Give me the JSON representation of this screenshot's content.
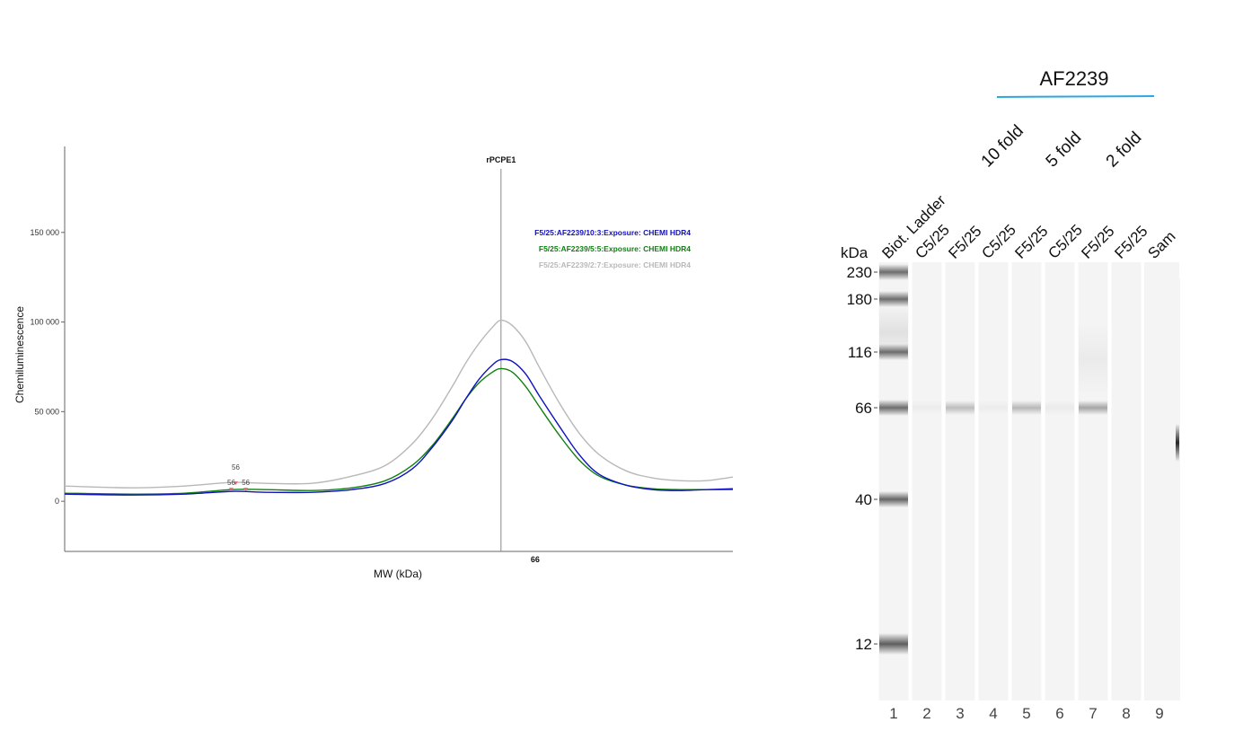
{
  "chart_data": [
    {
      "type": "line",
      "xlabel": "MW (kDa)",
      "ylabel": "Chemiluminescence",
      "ylim": [
        -28000,
        198000
      ],
      "yticks": [
        0,
        50000,
        100000,
        150000
      ],
      "ytick_labels": [
        "0",
        "50 000",
        "100 000",
        "150 000"
      ],
      "xlim": [
        0,
        100
      ],
      "marker": {
        "label": "rPCPE1",
        "x": 65.3,
        "tick_label": "66"
      },
      "legend_placement": "top-right",
      "grid": false,
      "peak_annotations": [
        {
          "label": "56",
          "x": 25.6,
          "y": 9500
        },
        {
          "label": "56",
          "x": 25.2,
          "y": 6000
        },
        {
          "label": "56",
          "x": 26.3,
          "y": 6000
        }
      ],
      "series": [
        {
          "name": "F5/25:AF2239/10:3:Exposure: CHEMI HDR4",
          "color": "#1010c0",
          "x": [
            0,
            10,
            18,
            25,
            30,
            37,
            43,
            48,
            52,
            55,
            58,
            60,
            62,
            64,
            65.3,
            67,
            69,
            71,
            74,
            77,
            80,
            84,
            88,
            92,
            96,
            100
          ],
          "y": [
            4000,
            3500,
            4000,
            5500,
            5000,
            5000,
            6500,
            10000,
            18000,
            30000,
            45000,
            57000,
            68000,
            76000,
            79000,
            78000,
            71000,
            59000,
            42000,
            26000,
            15000,
            9000,
            6500,
            6000,
            6500,
            7000
          ]
        },
        {
          "name": "F5/25:AF2239/5:5:Exposure: CHEMI HDR4",
          "color": "#108010",
          "x": [
            0,
            10,
            18,
            25,
            30,
            37,
            43,
            48,
            52,
            55,
            58,
            60,
            62,
            64,
            65.3,
            67,
            69,
            71,
            74,
            77,
            80,
            84,
            88,
            92,
            96,
            100
          ],
          "y": [
            4500,
            4000,
            4500,
            6500,
            6500,
            6000,
            7500,
            11500,
            20000,
            31000,
            46000,
            57000,
            66000,
            72000,
            74000,
            72000,
            64000,
            53000,
            37000,
            23000,
            14000,
            9000,
            7000,
            6500,
            6500,
            6500
          ]
        },
        {
          "name": "F5/25:AF2239/2:7:Exposure: CHEMI HDR4",
          "color": "#b8b8b8",
          "x": [
            0,
            10,
            18,
            25,
            30,
            37,
            43,
            48,
            52,
            55,
            58,
            60,
            62,
            64,
            65.3,
            67,
            69,
            71,
            74,
            77,
            80,
            84,
            88,
            92,
            96,
            100
          ],
          "y": [
            8500,
            7500,
            8500,
            10500,
            10000,
            10000,
            14000,
            20000,
            32000,
            46000,
            64000,
            77000,
            88000,
            97000,
            101000,
            98000,
            89000,
            75000,
            55000,
            38000,
            26000,
            17000,
            13000,
            11500,
            11500,
            13500
          ]
        }
      ]
    },
    {
      "type": "gel",
      "title": "AF2239",
      "group_labels": [
        "10 fold",
        "5 fold",
        "2 fold"
      ],
      "lane_labels": [
        "Biot. Ladder",
        "C5/25",
        "F5/25",
        "C5/25",
        "F5/25",
        "C5/25",
        "F5/25",
        "F5/25",
        "Sam"
      ],
      "lane_numbers": [
        "1",
        "2",
        "3",
        "4",
        "5",
        "6",
        "7",
        "8",
        "9"
      ],
      "unit_label": "kDa",
      "mw_markers": [
        230,
        180,
        116,
        66,
        40,
        12
      ],
      "mw_marker_labels": [
        "230",
        "180",
        "116",
        "66",
        "40",
        "12"
      ],
      "band_color": "#555555",
      "group_line_color": "#2aa8e0",
      "bands": [
        {
          "lane": 1,
          "mw": 230,
          "intensity": 0.85
        },
        {
          "lane": 1,
          "mw": 180,
          "intensity": 0.85
        },
        {
          "lane": 1,
          "mw": 116,
          "intensity": 0.85
        },
        {
          "lane": 1,
          "mw": 66,
          "intensity": 0.85
        },
        {
          "lane": 1,
          "mw": 40,
          "intensity": 0.9
        },
        {
          "lane": 1,
          "mw": 12,
          "intensity": 0.95
        },
        {
          "lane": 3,
          "mw": 66,
          "intensity": 0.35
        },
        {
          "lane": 5,
          "mw": 66,
          "intensity": 0.38
        },
        {
          "lane": 7,
          "mw": 66,
          "intensity": 0.5
        },
        {
          "lane": 2,
          "mw": 66,
          "intensity": 0.05
        },
        {
          "lane": 4,
          "mw": 66,
          "intensity": 0.05
        },
        {
          "lane": 6,
          "mw": 66,
          "intensity": 0.06
        }
      ]
    }
  ]
}
